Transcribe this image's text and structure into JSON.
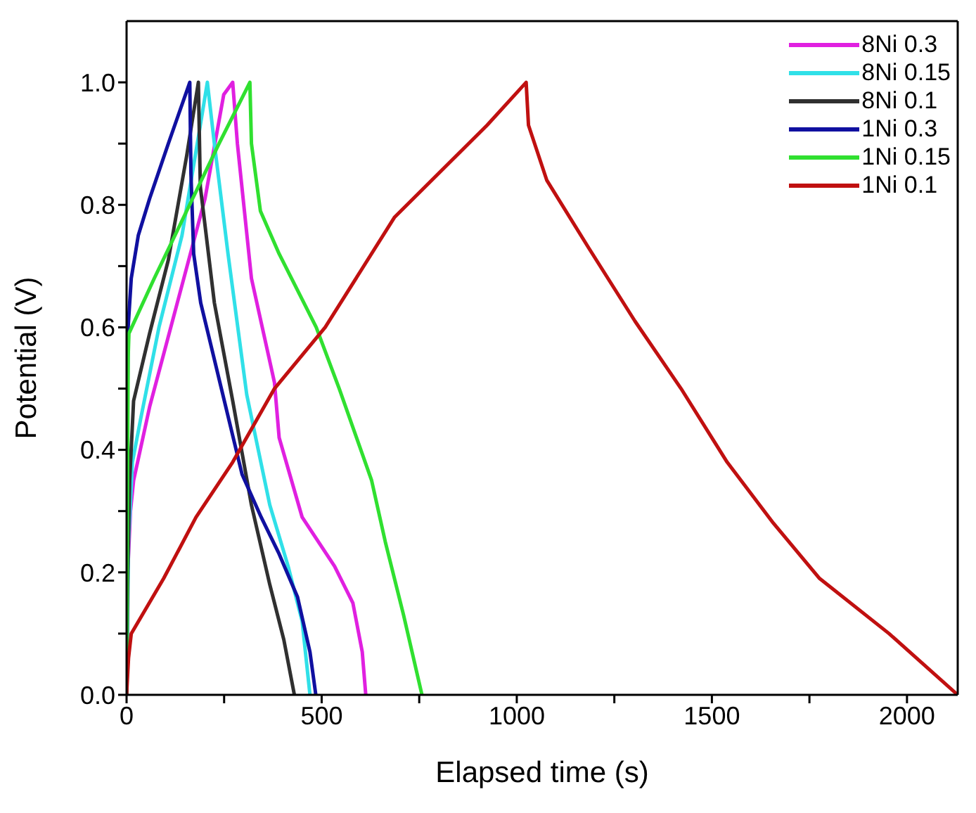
{
  "chart_data": {
    "type": "line",
    "xlabel": "Elapsed time (s)",
    "ylabel": "Potential (V)",
    "xlim": [
      0,
      2130
    ],
    "ylim": [
      0,
      1.1
    ],
    "xticks": [
      0,
      {
        "value": 250,
        "label": null
      },
      500,
      {
        "value": 750,
        "label": null
      },
      1000,
      {
        "value": 1250,
        "label": null
      },
      1500,
      {
        "value": 1750,
        "label": null
      },
      2000
    ],
    "yticks": [
      {
        "value": 0,
        "label": "0.0"
      },
      {
        "value": 0.1,
        "label": null
      },
      {
        "value": 0.2,
        "label": "0.2"
      },
      {
        "value": 0.3,
        "label": null
      },
      {
        "value": 0.4,
        "label": "0.4"
      },
      {
        "value": 0.5,
        "label": null
      },
      {
        "value": 0.6,
        "label": "0.6"
      },
      {
        "value": 0.7,
        "label": null
      },
      {
        "value": 0.8,
        "label": "0.8"
      },
      {
        "value": 0.9,
        "label": null
      },
      {
        "value": 1,
        "label": "1.0"
      }
    ],
    "legend": "top right",
    "marker": "none",
    "line_style": "solid",
    "series": [
      {
        "name": "8Ni 0.3",
        "color": "#e020e0",
        "x": [
          0,
          3,
          10,
          18,
          59,
          130,
          201,
          249,
          272,
          284,
          320,
          379,
          391,
          450,
          533,
          580,
          604,
          613
        ],
        "values": [
          0,
          0.2,
          0.3,
          0.35,
          0.47,
          0.64,
          0.81,
          0.98,
          1.0,
          0.9,
          0.68,
          0.51,
          0.42,
          0.29,
          0.21,
          0.15,
          0.07,
          0
        ]
      },
      {
        "name": "8Ni 0.15",
        "color": "#30e0e8",
        "x": [
          0,
          5,
          15,
          36,
          83,
          142,
          189,
          207,
          225,
          260,
          308,
          367,
          414,
          450,
          470
        ],
        "values": [
          0,
          0.25,
          0.38,
          0.45,
          0.6,
          0.75,
          0.93,
          1.0,
          0.9,
          0.72,
          0.49,
          0.31,
          0.21,
          0.12,
          0
        ]
      },
      {
        "name": "8Ni 0.1",
        "color": "#303030",
        "x": [
          0,
          3,
          8,
          18,
          59,
          107,
          154,
          184,
          189,
          225,
          272,
          320,
          367,
          403,
          430
        ],
        "values": [
          0,
          0.2,
          0.35,
          0.48,
          0.59,
          0.71,
          0.88,
          1.0,
          0.83,
          0.64,
          0.48,
          0.31,
          0.18,
          0.09,
          0
        ]
      },
      {
        "name": "1Ni 0.3",
        "color": "#1010a0",
        "x": [
          0,
          2,
          4,
          12,
          30,
          59,
          107,
          162,
          165,
          172,
          190,
          243,
          296,
          345,
          391,
          438,
          470,
          485
        ],
        "values": [
          0,
          0.45,
          0.6,
          0.68,
          0.75,
          0.81,
          0.9,
          1.0,
          0.85,
          0.72,
          0.64,
          0.5,
          0.36,
          0.29,
          0.23,
          0.16,
          0.07,
          0
        ]
      },
      {
        "name": "1Ni 0.15",
        "color": "#30e030",
        "x": [
          0,
          2,
          4,
          6,
          71,
          154,
          237,
          316,
          320,
          343,
          391,
          486,
          545,
          628,
          663,
          710,
          757
        ],
        "values": [
          0,
          0.3,
          0.55,
          0.59,
          0.68,
          0.79,
          0.9,
          1.0,
          0.9,
          0.79,
          0.72,
          0.6,
          0.5,
          0.35,
          0.25,
          0.13,
          0
        ]
      },
      {
        "name": "1Ni 0.1",
        "color": "#c01010",
        "x": [
          0,
          5,
          12,
          95,
          178,
          272,
          379,
          509,
          687,
          924,
          1024,
          1030,
          1077,
          1184,
          1303,
          1421,
          1539,
          1658,
          1776,
          1954,
          2130
        ],
        "values": [
          0,
          0.06,
          0.1,
          0.19,
          0.29,
          0.38,
          0.5,
          0.6,
          0.78,
          0.93,
          1.0,
          0.93,
          0.84,
          0.73,
          0.61,
          0.5,
          0.38,
          0.28,
          0.19,
          0.1,
          0
        ]
      }
    ]
  }
}
